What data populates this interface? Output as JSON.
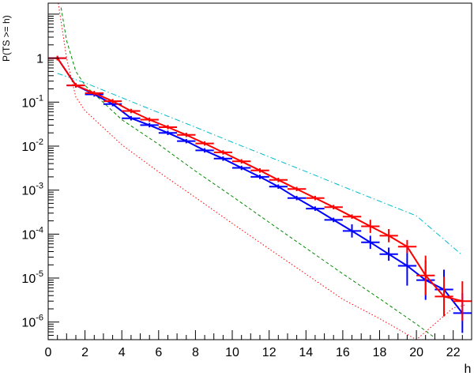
{
  "chart_data": {
    "type": "line",
    "title": "",
    "xlabel": "h",
    "ylabel": "P(TS >= h)",
    "xlim": [
      0,
      23
    ],
    "ylim_log10": [
      -6.4,
      1.25
    ],
    "y_scale": "log",
    "grid": false,
    "x_ticks": [
      "0",
      "2",
      "4",
      "6",
      "8",
      "10",
      "12",
      "14",
      "16",
      "18",
      "20",
      "22"
    ],
    "y_ticks": [
      {
        "base": "1",
        "exp": "",
        "value": 1
      },
      {
        "base": "10",
        "exp": "-1",
        "value": 0.1
      },
      {
        "base": "10",
        "exp": "-2",
        "value": 0.01
      },
      {
        "base": "10",
        "exp": "-3",
        "value": 0.001
      },
      {
        "base": "10",
        "exp": "-4",
        "value": 0.0001
      },
      {
        "base": "10",
        "exp": "-5",
        "value": 1e-05
      },
      {
        "base": "10",
        "exp": "-6",
        "value": 1e-06
      }
    ],
    "series": [
      {
        "color": "#ff0000",
        "style": "solid-with-errorbars",
        "x": [
          0.5,
          1.5,
          2.5,
          3.5,
          4.5,
          5.5,
          6.5,
          7.5,
          8.5,
          9.5,
          10.5,
          11.5,
          12.5,
          13.5,
          14.5,
          15.5,
          16.5,
          17.5,
          18.5,
          19.5,
          20.5,
          21.5,
          22.5
        ],
        "y": [
          1.0,
          0.24,
          0.16,
          0.105,
          0.063,
          0.04,
          0.027,
          0.018,
          0.0115,
          0.0072,
          0.0045,
          0.0028,
          0.0017,
          0.00106,
          0.00066,
          0.00041,
          0.00025,
          0.00015,
          9.2e-05,
          5.2e-05,
          1.15e-05,
          3.8e-06,
          3e-06
        ]
      },
      {
        "color": "#0000ff",
        "style": "solid-with-errorbars",
        "x": [
          0.5,
          1.5,
          2.5,
          3.5,
          4.5,
          5.5,
          6.5,
          7.5,
          8.5,
          9.5,
          10.5,
          11.5,
          12.5,
          13.5,
          14.5,
          15.5,
          16.5,
          17.5,
          18.5,
          19.5,
          20.5,
          21.5,
          22.5
        ],
        "y": [
          1.0,
          0.24,
          0.15,
          0.09,
          0.043,
          0.03,
          0.02,
          0.013,
          0.008,
          0.0052,
          0.0032,
          0.002,
          0.0012,
          0.00066,
          0.00038,
          0.00021,
          0.000118,
          6.5e-05,
          3.5e-05,
          1.9e-05,
          9e-06,
          5.5e-06,
          1.6e-06
        ]
      },
      {
        "color": "#ff0000",
        "style": "dotted",
        "x": [
          0.55,
          1.0,
          1.5,
          2,
          4,
          6,
          8,
          10,
          12,
          14,
          16,
          18,
          20,
          22,
          22.7
        ],
        "y": [
          17.8,
          1.0,
          0.13,
          0.064,
          0.0107,
          0.0026,
          0.00068,
          0.000175,
          4.6e-05,
          1.23e-05,
          3.3e-06,
          1.2e-06,
          3.6e-07,
          2.1e-06,
          2.5e-06
        ]
      },
      {
        "color": "#008800",
        "style": "dashed",
        "x": [
          0.7,
          1.0,
          1.5,
          2,
          4,
          6,
          8,
          10,
          12,
          14,
          16,
          18,
          20,
          21
        ],
        "y": [
          14.1,
          2.5,
          0.5,
          0.24,
          0.04,
          0.011,
          0.0027,
          0.00072,
          0.000185,
          4.8e-05,
          1.25e-05,
          3.4e-06,
          9e-07,
          4.4e-07
        ]
      },
      {
        "color": "#00bbcc",
        "style": "dash-dot",
        "x": [
          0.5,
          2,
          4,
          6,
          8,
          10,
          12,
          14,
          16,
          18,
          20,
          22.5
        ],
        "y": [
          0.45,
          0.275,
          0.126,
          0.058,
          0.027,
          0.0123,
          0.0057,
          0.00264,
          0.00121,
          0.00056,
          0.00026,
          3.3e-05
        ]
      }
    ]
  }
}
